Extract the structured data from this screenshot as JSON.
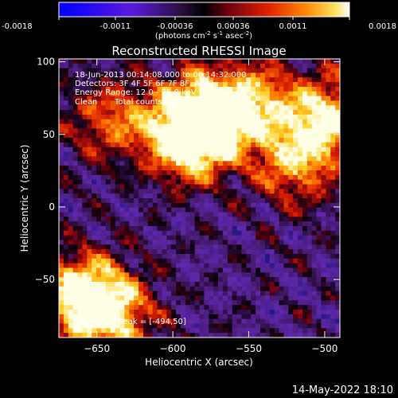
{
  "chart_data": {
    "type": "heatmap",
    "title": "Reconstructed RHESSI Image",
    "xlabel": "Heliocentric X (arcsec)",
    "ylabel": "Heliocentric Y (arcsec)",
    "xlim": [
      -675,
      -490
    ],
    "ylim": [
      -90,
      102
    ],
    "x_ticks": [
      -650,
      -600,
      -550,
      -500
    ],
    "y_ticks": [
      -50,
      0,
      50,
      100
    ],
    "colorbar": {
      "min": -0.0018,
      "max": 0.0018,
      "tick_values": [
        -0.0018,
        -0.0011,
        -0.00036,
        0.00036,
        0.0011,
        0.0018
      ],
      "tick_labels": [
        "-0.0018",
        "-0.0011",
        "-0.00036",
        "0.00036",
        "0.0011",
        "0.0018"
      ],
      "unit_parts": [
        "(photons cm",
        "-2",
        " s",
        "-1",
        " asec",
        "-2",
        ")"
      ]
    },
    "annotations": {
      "time_range": "18-Jun-2013 00:14:08.000 to 00:14:32.000",
      "detectors": "Detectors: 3F 4F 5F 6F 7F 8F, Att 0",
      "energy_range": "Energy Range: 12.0 - 25.0 keV",
      "algorithm": "Clean",
      "total_counts": "Total counts: 606.",
      "peak_position": "Position of Peak = [-494,50]"
    },
    "bright_regions": [
      {
        "x": -588,
        "y": 45,
        "level": 1.0
      },
      {
        "x": -582,
        "y": 65,
        "level": 0.95
      },
      {
        "x": -498,
        "y": 62,
        "level": 0.9
      },
      {
        "x": -660,
        "y": -60,
        "level": 0.92
      },
      {
        "x": -640,
        "y": -75,
        "level": 0.8
      },
      {
        "x": -548,
        "y": 72,
        "level": 0.75
      },
      {
        "x": -520,
        "y": 30,
        "level": 0.7
      },
      {
        "x": -640,
        "y": 60,
        "level": 0.6
      }
    ],
    "grid": false
  },
  "footer": {
    "date": "14-May-2022 18:10"
  }
}
